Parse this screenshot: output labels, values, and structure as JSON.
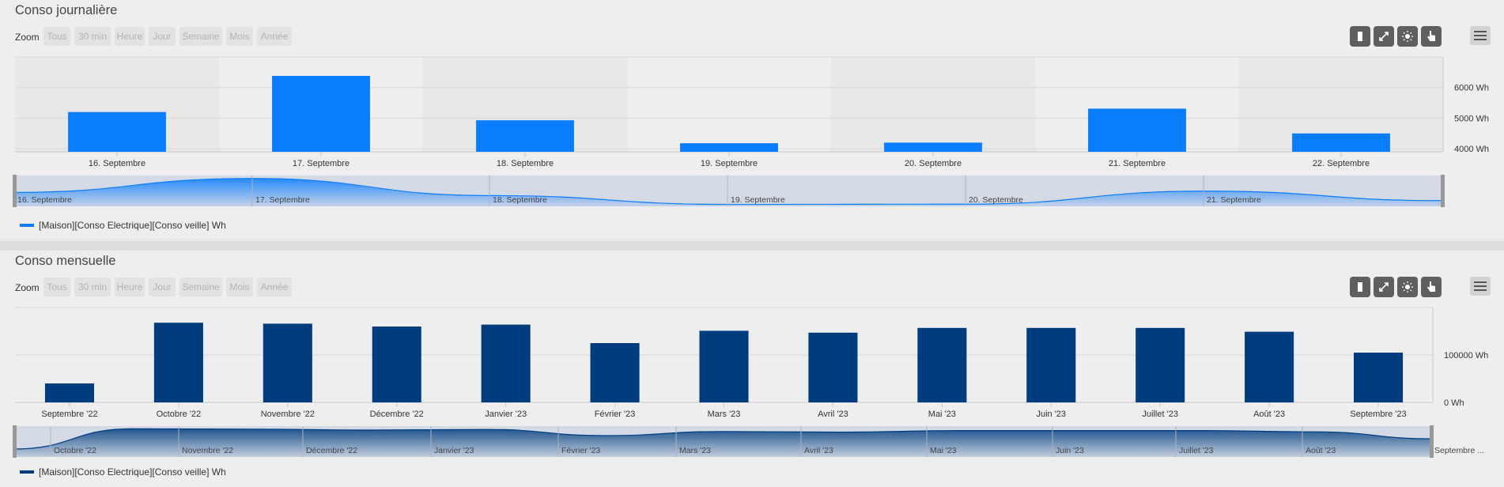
{
  "panels": [
    {
      "title": "Conso journalière",
      "zoom_label": "Zoom",
      "zoom_buttons": [
        "Tous",
        "30 min",
        "Heure",
        "Jour",
        "Semaine",
        "Mois",
        "Année"
      ],
      "legend": "[Maison][Conso Electrique][Conso veille] Wh",
      "color": "#0a7dff"
    },
    {
      "title": "Conso mensuelle",
      "zoom_label": "Zoom",
      "zoom_buttons": [
        "Tous",
        "30 min",
        "Heure",
        "Jour",
        "Semaine",
        "Mois",
        "Année"
      ],
      "legend": "[Maison][Conso Electrique][Conso veille] Wh",
      "color": "#003d7f"
    }
  ],
  "toolbar_icons": [
    "bar-chart-icon",
    "expand-icon",
    "brightness-icon",
    "pointer-hand-icon",
    "hamburger-menu-icon"
  ],
  "chart_data": [
    {
      "type": "bar",
      "categories": [
        "16. Septembre",
        "17. Septembre",
        "18. Septembre",
        "19. Septembre",
        "20. Septembre",
        "21. Septembre",
        "22. Septembre"
      ],
      "values": [
        5200,
        6380,
        4930,
        4180,
        4200,
        5310,
        4500
      ],
      "ylim": [
        3900,
        7000
      ],
      "yticks": [
        4000,
        5000,
        6000
      ],
      "ytick_labels": [
        "4000 Wh",
        "5000 Wh",
        "6000 Wh"
      ],
      "navigator_labels": [
        "16. Septembre",
        "17. Septembre",
        "18. Septembre",
        "19. Septembre",
        "20. Septembre",
        "21. Septembre"
      ],
      "grid": true,
      "legend_position": "bottom-left"
    },
    {
      "type": "bar",
      "categories": [
        "Septembre '22",
        "Octobre '22",
        "Novembre '22",
        "Décembre '22",
        "Janvier '23",
        "Février '23",
        "Mars '23",
        "Avril '23",
        "Mai '23",
        "Juin '23",
        "Juillet '23",
        "Août '23",
        "Septembre '23"
      ],
      "values": [
        40000,
        168000,
        166000,
        160000,
        164000,
        125000,
        151000,
        147000,
        157000,
        157000,
        157000,
        149000,
        105000
      ],
      "ylim": [
        0,
        200000
      ],
      "yticks": [
        0,
        100000
      ],
      "ytick_labels": [
        "0 Wh",
        "100000 Wh"
      ],
      "navigator_labels": [
        "Octobre '22",
        "Novembre '22",
        "Décembre '22",
        "Janvier '23",
        "Février '23",
        "Mars '23",
        "Avril '23",
        "Mai '23",
        "Juin '23",
        "Juillet '23",
        "Août '23",
        "Septembre ..."
      ],
      "grid": true,
      "legend_position": "bottom-left"
    }
  ]
}
